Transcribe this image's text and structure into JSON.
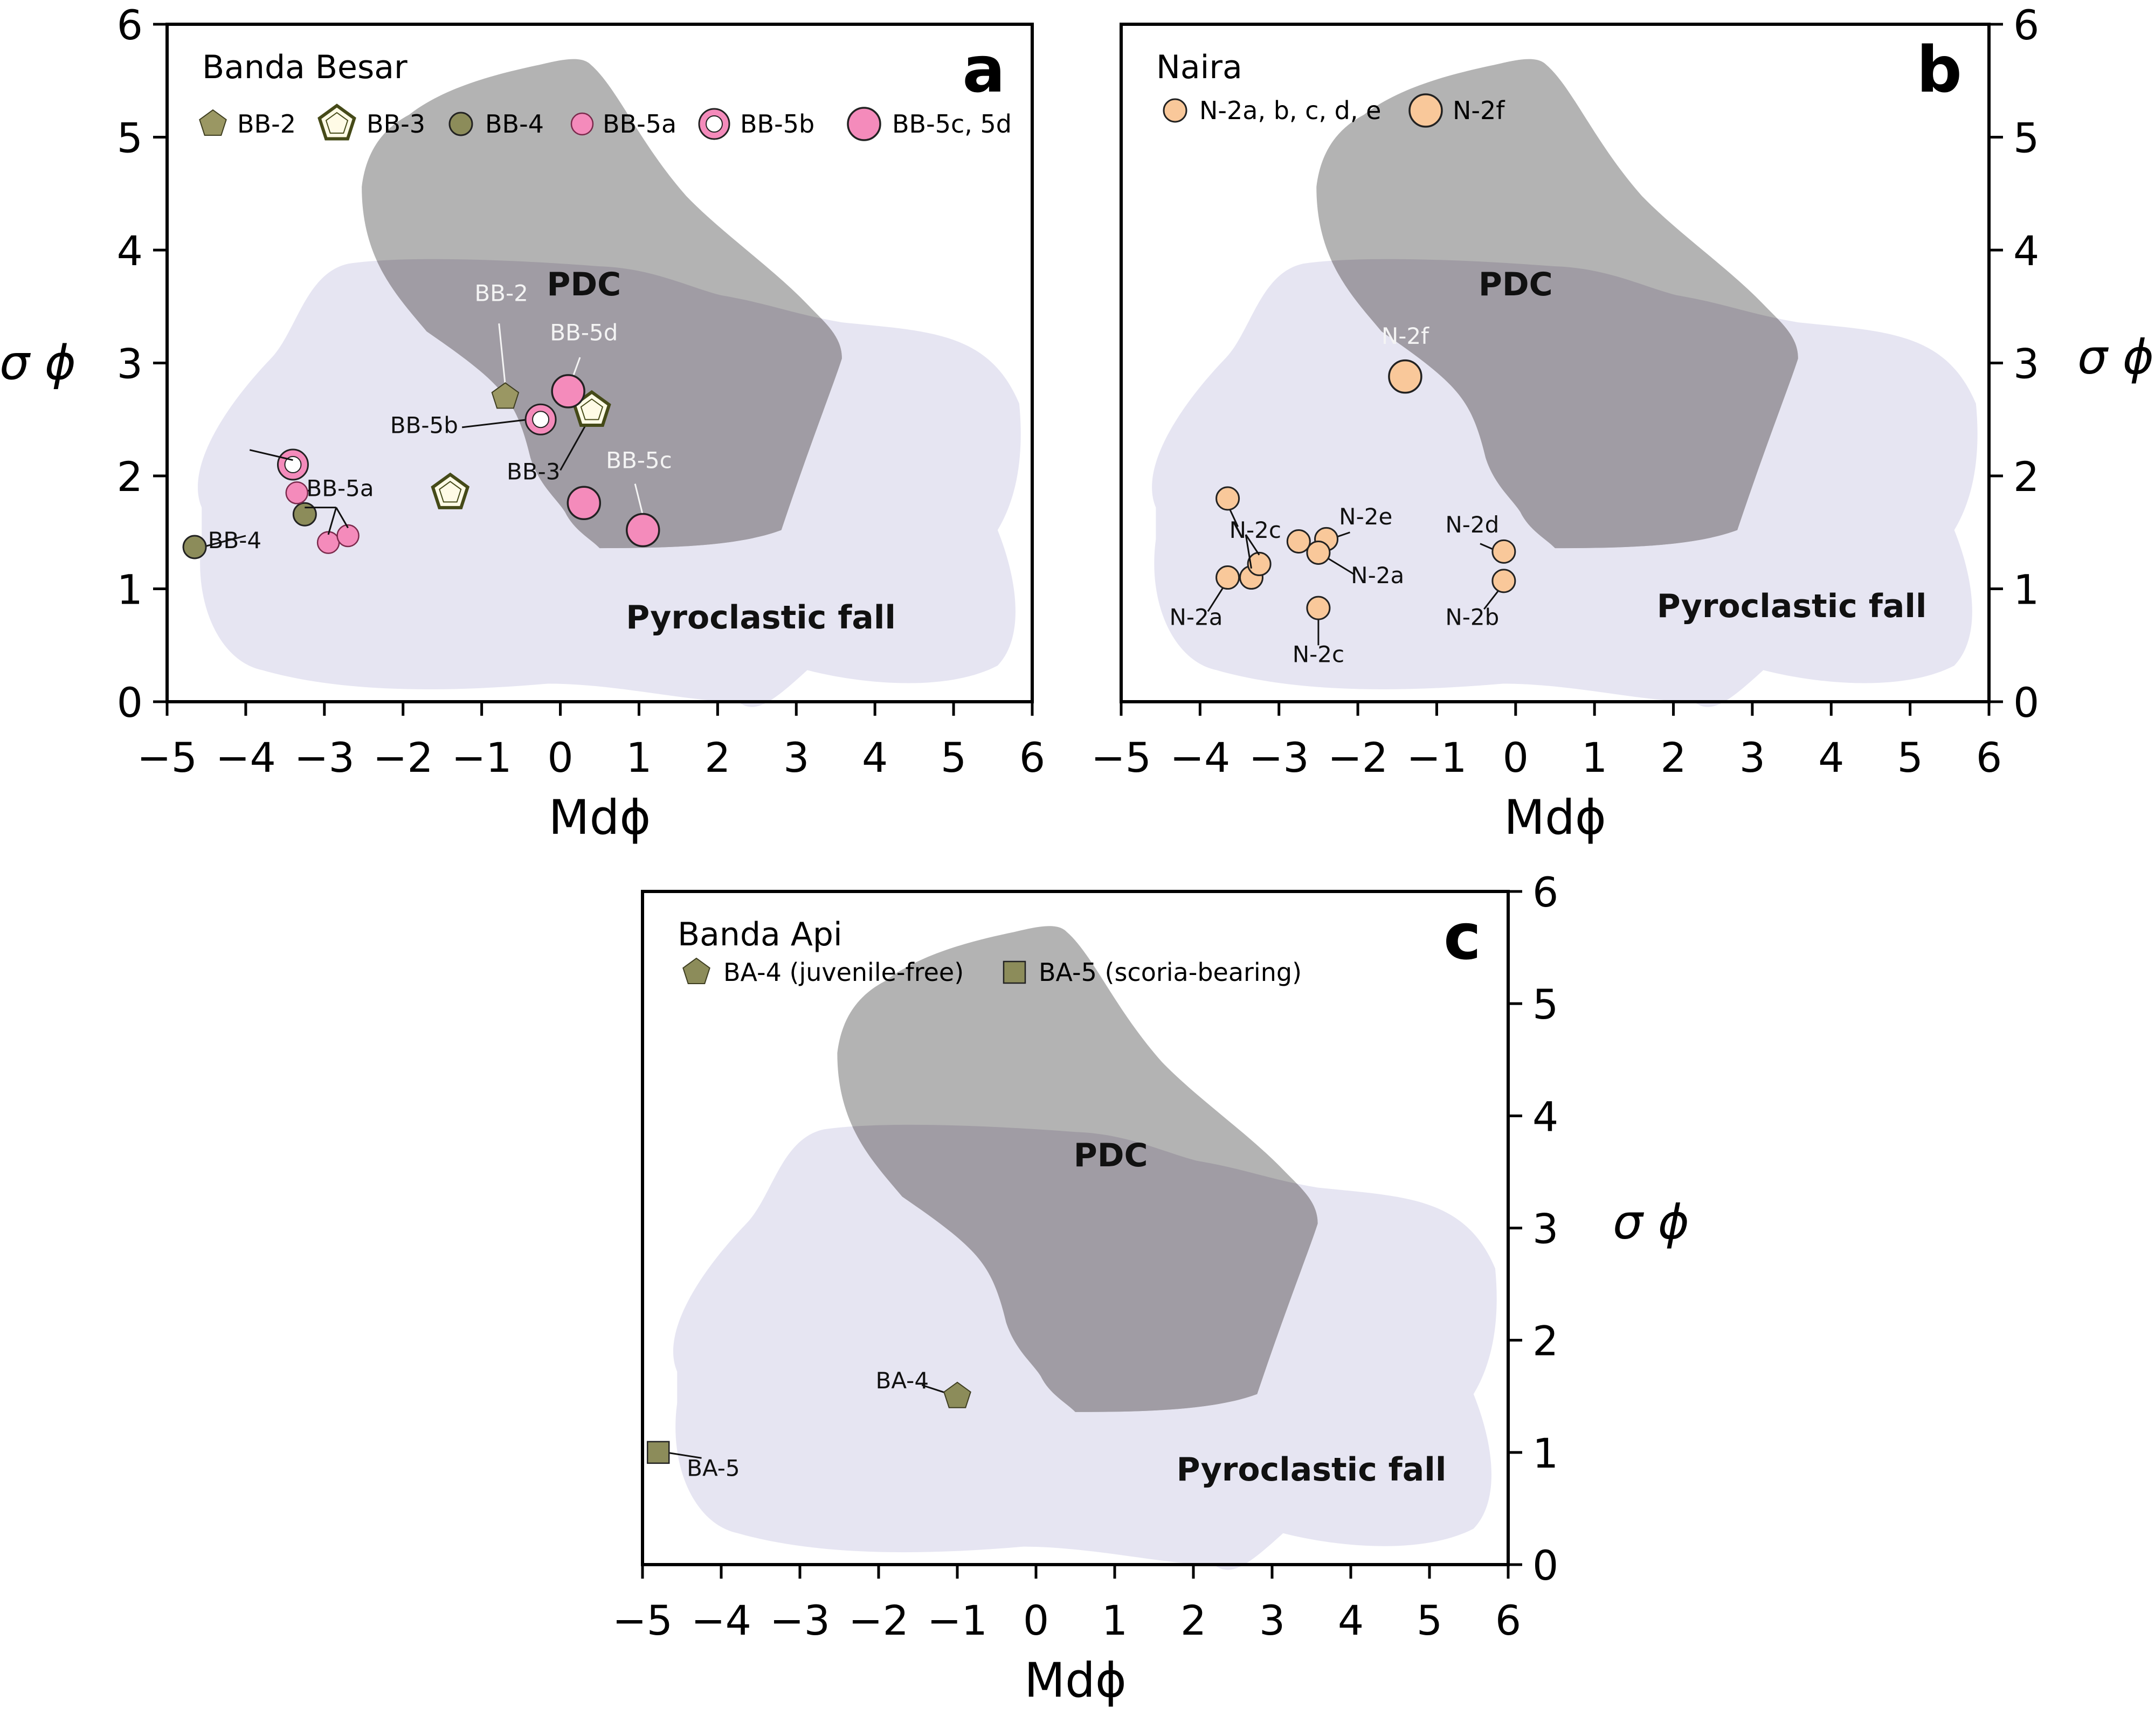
{
  "chart_data": [
    {
      "type": "scatter",
      "panel": "a",
      "title": "Banda Besar",
      "xlabel": "Mdϕ",
      "ylabel": "σ ϕ",
      "xlim": [
        -5,
        6
      ],
      "ylim": [
        0,
        6
      ],
      "xticks": [
        "−5",
        "−4",
        "−3",
        "−2",
        "−1",
        "0",
        "1",
        "2",
        "3",
        "4",
        "5",
        "6"
      ],
      "yticks": [
        "0",
        "1",
        "2",
        "3",
        "4",
        "5",
        "6"
      ],
      "fields": [
        {
          "name": "PDC",
          "label": "PDC"
        },
        {
          "name": "Pyroclastic fall",
          "label": "Pyroclastic fall"
        }
      ],
      "legend": [
        "BB-2",
        "BB-3",
        "BB-4",
        "BB-5a",
        "BB-5b",
        "BB-5c, 5d"
      ],
      "series": [
        {
          "name": "BB-2",
          "marker": "pentagon-filled",
          "color": "#9a9763",
          "points": [
            {
              "x": -0.7,
              "y": 2.7
            }
          ]
        },
        {
          "name": "BB-3",
          "marker": "pentagon-open",
          "color": "#4a4f1d",
          "points": [
            {
              "x": -1.4,
              "y": 1.85
            },
            {
              "x": 0.4,
              "y": 2.58
            }
          ]
        },
        {
          "name": "BB-4",
          "marker": "circle",
          "color": "#8c8c5a",
          "points": [
            {
              "x": -4.65,
              "y": 1.37
            },
            {
              "x": -3.25,
              "y": 1.66
            }
          ]
        },
        {
          "name": "BB-5a",
          "marker": "circle-small",
          "color": "#f48bbb",
          "points": [
            {
              "x": -3.35,
              "y": 1.85
            },
            {
              "x": -2.95,
              "y": 1.41
            },
            {
              "x": -2.7,
              "y": 1.47
            }
          ]
        },
        {
          "name": "BB-5b",
          "marker": "circle-ring",
          "color": "#f48bbb",
          "points": [
            {
              "x": -3.4,
              "y": 2.1
            },
            {
              "x": -0.25,
              "y": 2.5
            }
          ]
        },
        {
          "name": "BB-5c, 5d",
          "marker": "circle-large",
          "color": "#f48bbb",
          "points": [
            {
              "x": 0.1,
              "y": 2.75
            },
            {
              "x": 0.3,
              "y": 1.76
            },
            {
              "x": 1.05,
              "y": 1.52
            }
          ]
        }
      ],
      "annotations": [
        "BB-2",
        "BB-5d",
        "BB-5b",
        "BB-3",
        "BB-5c",
        "BB-5a",
        "BB-4"
      ]
    },
    {
      "type": "scatter",
      "panel": "b",
      "title": "Naira",
      "xlabel": "Mdϕ",
      "ylabel": "σ ϕ",
      "xlim": [
        -5,
        6
      ],
      "ylim": [
        0,
        6
      ],
      "xticks": [
        "−5",
        "−4",
        "−3",
        "−2",
        "−1",
        "0",
        "1",
        "2",
        "3",
        "4",
        "5",
        "6"
      ],
      "yticks": [
        "0",
        "1",
        "2",
        "3",
        "4",
        "5",
        "6"
      ],
      "fields": [
        {
          "name": "PDC",
          "label": "PDC"
        },
        {
          "name": "Pyroclastic fall",
          "label": "Pyroclastic fall"
        }
      ],
      "legend": [
        "N-2a, b, c, d, e",
        "N-2f"
      ],
      "series": [
        {
          "name": "N-2a, b, c, d, e",
          "marker": "circle",
          "color": "#f9c89a",
          "points": [
            {
              "x": -3.65,
              "y": 1.8
            },
            {
              "x": -3.65,
              "y": 1.1
            },
            {
              "x": -3.35,
              "y": 1.1
            },
            {
              "x": -3.25,
              "y": 1.22
            },
            {
              "x": -2.75,
              "y": 1.42
            },
            {
              "x": -2.4,
              "y": 1.44
            },
            {
              "x": -2.5,
              "y": 1.32
            },
            {
              "x": -2.5,
              "y": 0.83
            },
            {
              "x": -0.15,
              "y": 1.33
            },
            {
              "x": -0.15,
              "y": 1.07
            }
          ]
        },
        {
          "name": "N-2f",
          "marker": "circle-large",
          "color": "#f9c89a",
          "points": [
            {
              "x": -1.4,
              "y": 2.88
            }
          ]
        }
      ],
      "annotations": [
        "N-2f",
        "N-2c",
        "N-2e",
        "N-2a",
        "N-2a",
        "N-2c",
        "N-2d",
        "N-2b"
      ]
    },
    {
      "type": "scatter",
      "panel": "c",
      "title": "Banda Api",
      "xlabel": "Mdϕ",
      "ylabel": "σ ϕ",
      "xlim": [
        -5,
        6
      ],
      "ylim": [
        0,
        6
      ],
      "xticks": [
        "−5",
        "−4",
        "−3",
        "−2",
        "−1",
        "0",
        "1",
        "2",
        "3",
        "4",
        "5",
        "6"
      ],
      "yticks": [
        "0",
        "1",
        "2",
        "3",
        "4",
        "5",
        "6"
      ],
      "fields": [
        {
          "name": "PDC",
          "label": "PDC"
        },
        {
          "name": "Pyroclastic fall",
          "label": "Pyroclastic fall"
        }
      ],
      "legend": [
        "BA-4 (juvenile-free)",
        "BA-5 (scoria-bearing)"
      ],
      "series": [
        {
          "name": "BA-4 (juvenile-free)",
          "marker": "pentagon-filled",
          "color": "#8c8c5a",
          "points": [
            {
              "x": -1.0,
              "y": 1.5
            }
          ]
        },
        {
          "name": "BA-5 (scoria-bearing)",
          "marker": "square",
          "color": "#8c8c5a",
          "points": [
            {
              "x": -4.8,
              "y": 1.0
            }
          ]
        }
      ],
      "annotations": [
        "BA-4",
        "BA-5"
      ]
    }
  ],
  "colors": {
    "pdc": "#b3b3b3",
    "fall": "#e6e5f2",
    "overlap": "#a09ca4",
    "pink": "#f48bbb",
    "olive": "#8c8c5a",
    "peach": "#f9c89a"
  }
}
